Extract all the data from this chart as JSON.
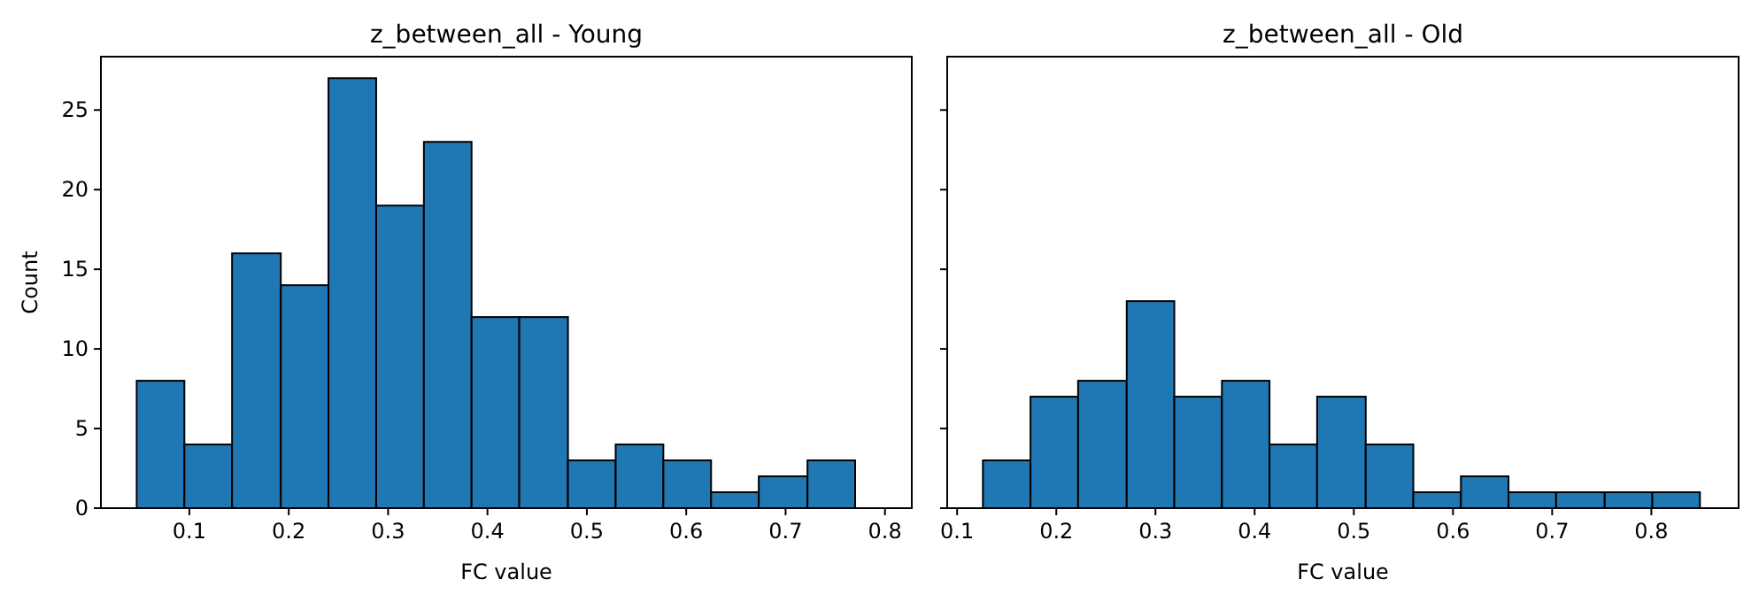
{
  "chart_data": [
    {
      "type": "histogram",
      "title": "z_between_all - Young",
      "xlabel": "FC value",
      "ylabel": "Count",
      "color": "#1f77b4",
      "bins": [
        0.047,
        0.095,
        0.143,
        0.192,
        0.24,
        0.288,
        0.336,
        0.384,
        0.432,
        0.481,
        0.529,
        0.577,
        0.625,
        0.673,
        0.722,
        0.77
      ],
      "values": [
        8,
        4,
        16,
        14,
        27,
        19,
        23,
        12,
        12,
        3,
        4,
        3,
        1,
        2,
        3
      ],
      "xlim": [
        0.011,
        0.827
      ],
      "xticks": [
        {
          "value": 0.1,
          "label": "0.1"
        },
        {
          "value": 0.2,
          "label": "0.2"
        },
        {
          "value": 0.3,
          "label": "0.3"
        },
        {
          "value": 0.4,
          "label": "0.4"
        },
        {
          "value": 0.5,
          "label": "0.5"
        },
        {
          "value": 0.6,
          "label": "0.6"
        },
        {
          "value": 0.7,
          "label": "0.7"
        },
        {
          "value": 0.8,
          "label": "0.8"
        }
      ],
      "ylim": [
        0,
        28.35
      ],
      "yticks": [
        0,
        5,
        10,
        15,
        20,
        25
      ]
    },
    {
      "type": "histogram",
      "title": "z_between_all - Old",
      "xlabel": "FC value",
      "color": "#1f77b4",
      "bins": [
        0.126,
        0.174,
        0.222,
        0.271,
        0.319,
        0.367,
        0.415,
        0.463,
        0.512,
        0.56,
        0.608,
        0.656,
        0.704,
        0.753,
        0.801,
        0.849
      ],
      "values": [
        3,
        7,
        8,
        13,
        7,
        8,
        4,
        7,
        4,
        1,
        2,
        1,
        1,
        1,
        1
      ],
      "xlim": [
        0.09,
        0.888
      ],
      "xticks": [
        {
          "value": 0.1,
          "label": "0.1"
        },
        {
          "value": 0.2,
          "label": "0.2"
        },
        {
          "value": 0.3,
          "label": "0.3"
        },
        {
          "value": 0.4,
          "label": "0.4"
        },
        {
          "value": 0.5,
          "label": "0.5"
        },
        {
          "value": 0.6,
          "label": "0.6"
        },
        {
          "value": 0.7,
          "label": "0.7"
        },
        {
          "value": 0.8,
          "label": "0.8"
        }
      ],
      "ylim": [
        0,
        28.35
      ],
      "yticks": [
        0,
        5,
        10,
        15,
        20,
        25
      ],
      "tick_labels": "x"
    }
  ]
}
